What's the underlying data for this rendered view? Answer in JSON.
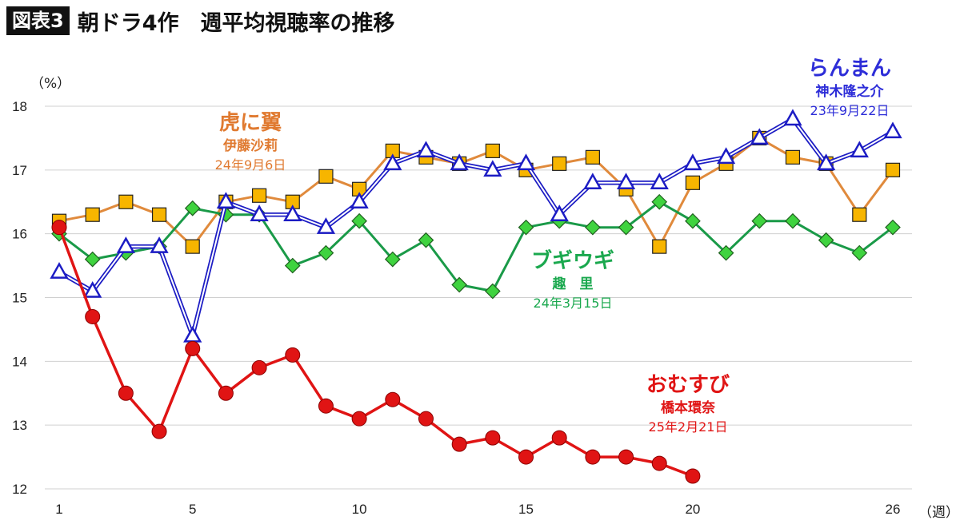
{
  "header": {
    "badge": "図表3",
    "title": "朝ドラ4作　週平均視聴率の推移"
  },
  "chart_data": {
    "type": "line",
    "y_unit": "（%）",
    "x_unit": "（週）",
    "ylim": [
      12,
      18
    ],
    "yticks": [
      12,
      13,
      14,
      15,
      16,
      17,
      18
    ],
    "xlim": [
      1,
      26
    ],
    "xticks": [
      1,
      5,
      10,
      15,
      20,
      26
    ],
    "grid": "horizontal",
    "series": [
      {
        "name": "らんまん",
        "actor": "神木隆之介",
        "date": "23年9月22日",
        "color": "#1c1cc4",
        "label_color": "#2d2dd8",
        "marker": "triangle",
        "x": [
          1,
          2,
          3,
          4,
          5,
          6,
          7,
          8,
          9,
          10,
          11,
          12,
          13,
          14,
          15,
          16,
          17,
          18,
          19,
          20,
          21,
          22,
          23,
          24,
          25,
          26
        ],
        "values": [
          15.4,
          15.1,
          15.8,
          15.8,
          14.4,
          16.5,
          16.3,
          16.3,
          16.1,
          16.5,
          17.1,
          17.3,
          17.1,
          17.0,
          17.1,
          16.3,
          16.8,
          16.8,
          16.8,
          17.1,
          17.2,
          17.5,
          17.8,
          17.1,
          17.3,
          17.6
        ]
      },
      {
        "name": "虎に翼",
        "actor": "伊藤沙莉",
        "date": "24年9月6日",
        "color": "#e08a3c",
        "label_color": "#e07a30",
        "marker": "square",
        "x": [
          1,
          2,
          3,
          4,
          5,
          6,
          7,
          8,
          9,
          10,
          11,
          12,
          13,
          14,
          15,
          16,
          17,
          18,
          19,
          20,
          21,
          22,
          23,
          24,
          25,
          26
        ],
        "values": [
          16.2,
          16.3,
          16.5,
          16.3,
          15.8,
          16.5,
          16.6,
          16.5,
          16.9,
          16.7,
          17.3,
          17.2,
          17.1,
          17.3,
          17.0,
          17.1,
          17.2,
          16.7,
          15.8,
          16.8,
          17.1,
          17.5,
          17.2,
          17.1,
          16.3,
          17.0
        ]
      },
      {
        "name": "ブギウギ",
        "actor": "趣　里",
        "date": "24年3月15日",
        "color": "#1a9a48",
        "label_color": "#1aa84e",
        "marker": "diamond",
        "x": [
          1,
          2,
          3,
          4,
          5,
          6,
          7,
          8,
          9,
          10,
          11,
          12,
          13,
          14,
          15,
          16,
          17,
          18,
          19,
          20,
          21,
          22,
          23,
          24,
          25,
          26
        ],
        "values": [
          16.0,
          15.6,
          15.7,
          15.8,
          16.4,
          16.3,
          16.3,
          15.5,
          15.7,
          16.2,
          15.6,
          15.9,
          15.2,
          15.1,
          16.1,
          16.2,
          16.1,
          16.1,
          16.5,
          16.2,
          15.7,
          16.2,
          16.2,
          15.9,
          15.7,
          16.1
        ]
      },
      {
        "name": "おむすび",
        "actor": "橋本環奈",
        "date": "25年2月21日",
        "color": "#e01414",
        "label_color": "#e01414",
        "marker": "circle",
        "x": [
          1,
          2,
          3,
          4,
          5,
          6,
          7,
          8,
          9,
          10,
          11,
          12,
          13,
          14,
          15,
          16,
          17,
          18,
          19,
          20
        ],
        "values": [
          16.1,
          14.7,
          13.5,
          12.9,
          14.2,
          13.5,
          13.9,
          14.1,
          13.3,
          13.1,
          13.4,
          13.1,
          12.7,
          12.8,
          12.5,
          12.8,
          12.5,
          12.5,
          12.4,
          12.2
        ]
      }
    ]
  }
}
